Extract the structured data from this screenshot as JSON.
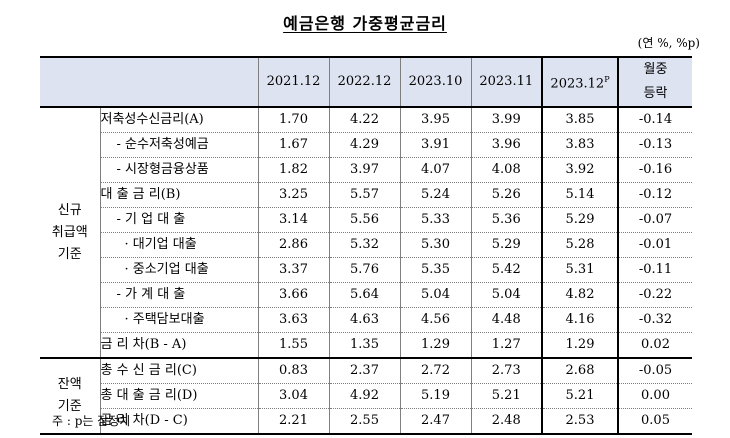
{
  "title": "예금은행 가중평균금리",
  "unit": "(연 %, %p)",
  "header": {
    "columns": [
      "2021.12",
      "2022.12",
      "2023.10",
      "2023.11",
      "2023.12",
      "월중 등락"
    ],
    "highlight_suffix": "P",
    "change_line1": "월중",
    "change_line2": "등락"
  },
  "groups": {
    "new": [
      "신규",
      "취급액",
      "기준"
    ],
    "balance": [
      "잔액",
      "기준"
    ]
  },
  "rows": [
    {
      "label": "저축성수신금리(A)",
      "values": [
        "1.70",
        "4.22",
        "3.95",
        "3.99",
        "3.85",
        "-0.14"
      ]
    },
    {
      "label": "- 순수저축성예금",
      "values": [
        "1.67",
        "4.29",
        "3.91",
        "3.96",
        "3.83",
        "-0.13"
      ]
    },
    {
      "label": "- 시장형금융상품",
      "values": [
        "1.82",
        "3.97",
        "4.07",
        "4.08",
        "3.92",
        "-0.16"
      ]
    },
    {
      "label": "대 출 금 리(B)",
      "values": [
        "3.25",
        "5.57",
        "5.24",
        "5.26",
        "5.14",
        "-0.12"
      ]
    },
    {
      "label": "- 기 업 대 출",
      "values": [
        "3.14",
        "5.56",
        "5.33",
        "5.36",
        "5.29",
        "-0.07"
      ]
    },
    {
      "label": "· 대기업 대출",
      "values": [
        "2.86",
        "5.32",
        "5.30",
        "5.29",
        "5.28",
        "-0.01"
      ]
    },
    {
      "label": "· 중소기업 대출",
      "values": [
        "3.37",
        "5.76",
        "5.35",
        "5.42",
        "5.31",
        "-0.11"
      ]
    },
    {
      "label": "- 가 계 대 출",
      "values": [
        "3.66",
        "5.64",
        "5.04",
        "5.04",
        "4.82",
        "-0.22"
      ]
    },
    {
      "label": "· 주택담보대출",
      "values": [
        "3.63",
        "4.63",
        "4.56",
        "4.48",
        "4.16",
        "-0.32"
      ]
    },
    {
      "label": "금 리 차(B - A)",
      "values": [
        "1.55",
        "1.35",
        "1.29",
        "1.27",
        "1.29",
        "0.02"
      ]
    },
    {
      "label": "총 수 신 금 리(C)",
      "values": [
        "0.83",
        "2.37",
        "2.72",
        "2.73",
        "2.68",
        "-0.05"
      ]
    },
    {
      "label": "총 대 출 금 리(D)",
      "values": [
        "3.04",
        "4.92",
        "5.19",
        "5.21",
        "5.21",
        "0.00"
      ]
    },
    {
      "label": "금 리 차(D - C)",
      "values": [
        "2.21",
        "2.55",
        "2.47",
        "2.48",
        "2.53",
        "0.05"
      ]
    }
  ],
  "note": "주 : p는 잠정치"
}
